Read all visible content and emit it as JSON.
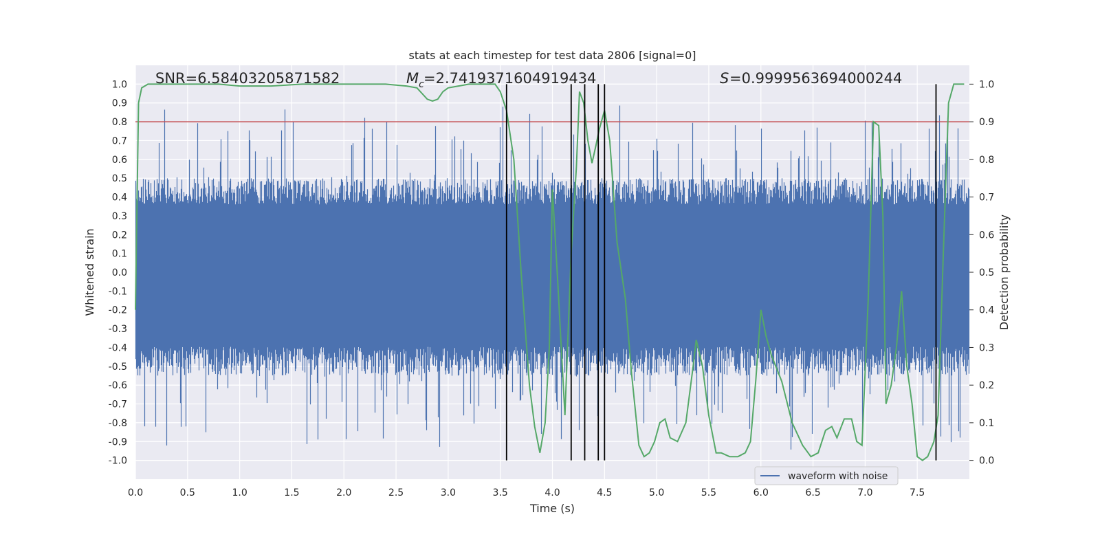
{
  "chart_data": {
    "type": "line",
    "title": "stats at each timestep for test data 2806 [signal=0]",
    "xlabel": "Time (s)",
    "ylabel_left": "Whitened strain",
    "ylabel_right": "Detection probability",
    "xlim": [
      0.0,
      8.0
    ],
    "ylim_left": [
      -1.1,
      1.1
    ],
    "ylim_right": [
      -0.05,
      1.05
    ],
    "x_ticks": [
      "0.0",
      "0.5",
      "1.0",
      "1.5",
      "2.0",
      "2.5",
      "3.0",
      "3.5",
      "4.0",
      "4.5",
      "5.0",
      "5.5",
      "6.0",
      "6.5",
      "7.0",
      "7.5"
    ],
    "y_ticks_left": [
      "1.0",
      "0.9",
      "0.8",
      "0.7",
      "0.6",
      "0.5",
      "0.4",
      "0.3",
      "0.2",
      "0.1",
      "0.0",
      "-0.1",
      "-0.2",
      "-0.3",
      "-0.4",
      "-0.5",
      "-0.6",
      "-0.7",
      "-0.8",
      "-0.9",
      "-1.0"
    ],
    "y_ticks_right": [
      "1.0",
      "0.9",
      "0.8",
      "0.7",
      "0.6",
      "0.5",
      "0.4",
      "0.3",
      "0.2",
      "0.1",
      "0.0"
    ],
    "grid": true,
    "annotations": {
      "snr": "SNR=6.58403205871582",
      "mc_value": "=2.7419371604919434",
      "s_value": "=0.9999563694000244"
    },
    "threshold": {
      "value": 0.8,
      "axis": "left",
      "color": "#c44e52"
    },
    "vertical_lines": [
      3.56,
      4.18,
      4.31,
      4.44,
      4.5,
      7.68
    ],
    "vertical_line_range": [
      -1.0,
      1.0
    ],
    "series": [
      {
        "name": "waveform with noise",
        "axis": "left",
        "color": "#4c72b0",
        "render": "dense-noise",
        "sample_rate_hz": 2048,
        "duration_s": 8.0,
        "typical_range": [
          -0.55,
          0.5
        ],
        "extreme_range": [
          -0.98,
          1.0
        ]
      },
      {
        "name": "detection probability",
        "axis": "right",
        "color": "#55a868",
        "x": [
          0.0,
          0.03,
          0.06,
          0.12,
          0.3,
          0.5,
          0.8,
          1.0,
          1.3,
          1.6,
          2.0,
          2.4,
          2.6,
          2.7,
          2.8,
          2.85,
          2.9,
          2.95,
          3.0,
          3.1,
          3.2,
          3.35,
          3.45,
          3.5,
          3.56,
          3.63,
          3.7,
          3.78,
          3.83,
          3.88,
          3.93,
          3.97,
          4.0,
          4.05,
          4.12,
          4.18,
          4.23,
          4.26,
          4.3,
          4.34,
          4.38,
          4.42,
          4.45,
          4.5,
          4.55,
          4.62,
          4.7,
          4.76,
          4.83,
          4.88,
          4.93,
          4.98,
          5.03,
          5.08,
          5.13,
          5.2,
          5.28,
          5.35,
          5.38,
          5.44,
          5.5,
          5.57,
          5.62,
          5.7,
          5.78,
          5.85,
          5.9,
          5.95,
          6.0,
          6.05,
          6.1,
          6.2,
          6.3,
          6.4,
          6.48,
          6.55,
          6.62,
          6.68,
          6.73,
          6.8,
          6.87,
          6.92,
          6.97,
          7.03,
          7.08,
          7.13,
          7.17,
          7.2,
          7.25,
          7.3,
          7.35,
          7.4,
          7.45,
          7.5,
          7.55,
          7.6,
          7.66,
          7.7,
          7.75,
          7.8,
          7.85,
          7.9,
          7.95
        ],
        "y": [
          0.4,
          0.95,
          0.99,
          1.0,
          1.0,
          1.0,
          1.0,
          0.995,
          0.995,
          1.0,
          1.0,
          1.0,
          0.995,
          0.99,
          0.96,
          0.955,
          0.96,
          0.98,
          0.99,
          0.995,
          1.0,
          1.0,
          1.0,
          0.98,
          0.93,
          0.8,
          0.5,
          0.2,
          0.09,
          0.02,
          0.1,
          0.3,
          0.72,
          0.48,
          0.12,
          0.55,
          0.78,
          0.98,
          0.95,
          0.85,
          0.79,
          0.84,
          0.88,
          0.93,
          0.85,
          0.58,
          0.43,
          0.23,
          0.04,
          0.01,
          0.02,
          0.05,
          0.1,
          0.11,
          0.06,
          0.05,
          0.1,
          0.25,
          0.32,
          0.25,
          0.12,
          0.02,
          0.02,
          0.01,
          0.01,
          0.02,
          0.05,
          0.21,
          0.4,
          0.33,
          0.28,
          0.21,
          0.1,
          0.04,
          0.01,
          0.02,
          0.08,
          0.09,
          0.06,
          0.11,
          0.11,
          0.05,
          0.04,
          0.43,
          0.9,
          0.89,
          0.65,
          0.15,
          0.2,
          0.3,
          0.45,
          0.25,
          0.15,
          0.01,
          0.0,
          0.01,
          0.05,
          0.12,
          0.55,
          0.95,
          1.0,
          1.0,
          1.0
        ]
      }
    ],
    "legend": {
      "entries": [
        "waveform with noise"
      ],
      "placement": "bottom-right"
    }
  }
}
